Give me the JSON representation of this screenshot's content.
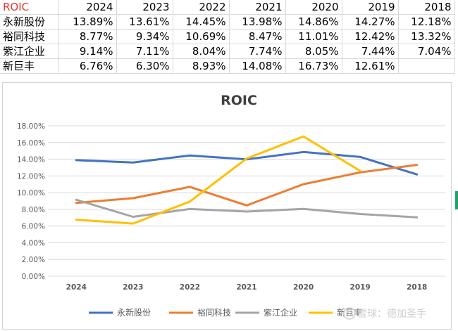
{
  "table": {
    "corner": "ROIC",
    "years": [
      "2024",
      "2023",
      "2022",
      "2021",
      "2020",
      "2019",
      "2018"
    ],
    "rows": [
      {
        "name": "永新股份",
        "values": [
          "13.89%",
          "13.61%",
          "14.45%",
          "13.98%",
          "14.86%",
          "14.27%",
          "12.18%"
        ]
      },
      {
        "name": "裕同科技",
        "values": [
          "8.77%",
          "9.34%",
          "10.69%",
          "8.47%",
          "11.01%",
          "12.42%",
          "13.32%"
        ]
      },
      {
        "name": "紫江企业",
        "values": [
          "9.14%",
          "7.11%",
          "8.04%",
          "7.74%",
          "8.05%",
          "7.44%",
          "7.04%"
        ]
      },
      {
        "name": "新巨丰",
        "values": [
          "6.76%",
          "6.30%",
          "8.93%",
          "14.08%",
          "16.73%",
          "12.61%",
          ""
        ]
      }
    ]
  },
  "colors": {
    "header_label": "#e8352a",
    "grid": "#d9d9d9",
    "series": [
      "#4472c4",
      "#ed7d31",
      "#a5a5a5",
      "#ffc000"
    ],
    "selection_marker": "#21a366"
  },
  "chart_data": {
    "type": "line",
    "title": "ROIC",
    "categories": [
      "2024",
      "2023",
      "2022",
      "2021",
      "2020",
      "2019",
      "2018"
    ],
    "ylim": [
      0,
      18
    ],
    "yticks": [
      "0.00%",
      "2.00%",
      "4.00%",
      "6.00%",
      "8.00%",
      "10.00%",
      "12.00%",
      "14.00%",
      "16.00%",
      "18.00%"
    ],
    "grid": true,
    "legend": "bottom",
    "series": [
      {
        "name": "永新股份",
        "values": [
          13.89,
          13.61,
          14.45,
          13.98,
          14.86,
          14.27,
          12.18
        ]
      },
      {
        "name": "裕同科技",
        "values": [
          8.77,
          9.34,
          10.69,
          8.47,
          11.01,
          12.42,
          13.32
        ]
      },
      {
        "name": "紫江企业",
        "values": [
          9.14,
          7.11,
          8.04,
          7.74,
          8.05,
          7.44,
          7.04
        ]
      },
      {
        "name": "新巨丰",
        "values": [
          6.76,
          6.3,
          8.93,
          14.08,
          16.73,
          12.61,
          null
        ]
      }
    ]
  },
  "watermark": "雪球：德加圣手",
  "watermark_icon": "snowball-logo-icon"
}
